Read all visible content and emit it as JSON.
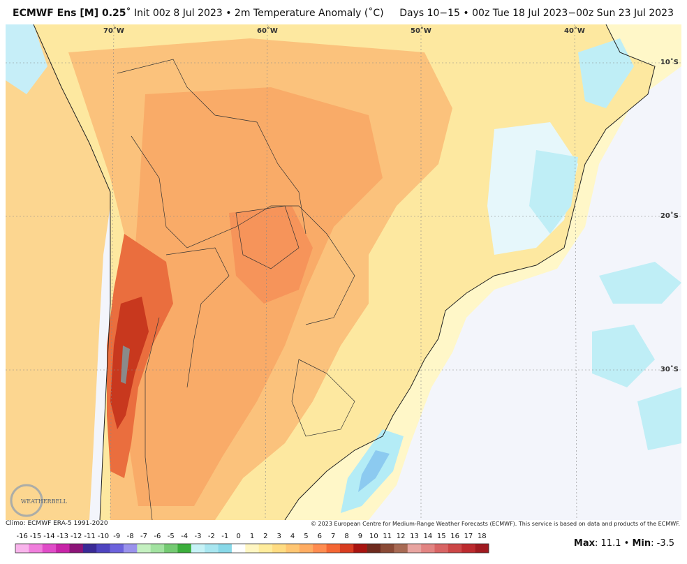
{
  "header": {
    "title_bold": "ECMWF Ens [M] 0.25˚",
    "title_rest": "Init 00z 8 Jul 2023 • 2m Temperature Anomaly (˚C)",
    "valid": "Days 10−15 • 00z Tue 18 Jul 2023−00z Sun 23 Jul 2023"
  },
  "map": {
    "lon_labels": [
      "70˚W",
      "60˚W",
      "50˚W",
      "40˚W"
    ],
    "lat_labels": [
      "10˚S",
      "20˚S",
      "30˚S"
    ],
    "logo": "WEATHERBELL"
  },
  "footer": {
    "climo": "Climo: ECMWF ERA-5 1991-2020",
    "copyright": "© 2023 European Centre for Medium-Range Weather Forecasts (ECMWF). This service is based on data and products of the ECMWF."
  },
  "colorbar": {
    "labels": [
      -16,
      -15,
      -14,
      -13,
      -12,
      -11,
      -10,
      -9,
      -8,
      -7,
      -6,
      -5,
      -4,
      -3,
      -2,
      -1,
      0,
      1,
      2,
      3,
      4,
      5,
      6,
      7,
      8,
      9,
      10,
      11,
      12,
      13,
      14,
      15,
      16,
      17,
      18
    ],
    "colors": [
      "#f9b4ec",
      "#f07edc",
      "#e04cc8",
      "#c824a8",
      "#8c1478",
      "#3a2a96",
      "#4e44c0",
      "#6c62dc",
      "#9a92ec",
      "#c4f0c0",
      "#a2e2a0",
      "#74ca72",
      "#3cae3c",
      "#c6f2f6",
      "#a8e6f0",
      "#88d8e8",
      "#ffffff",
      "#fff6c2",
      "#ffec9c",
      "#ffdc82",
      "#ffc672",
      "#ffac62",
      "#ff8c50",
      "#f46634",
      "#d83c20",
      "#a81410",
      "#6e2a1e",
      "#8a4a36",
      "#a86a54",
      "#e8a4a0",
      "#e28482",
      "#d86464",
      "#cc4646",
      "#bc2a2e",
      "#a01a20"
    ]
  },
  "stats": {
    "max_label": "Max",
    "max": 11.1,
    "separator": "•",
    "min_label": "Min",
    "min": -3.5,
    "colon": ":"
  }
}
